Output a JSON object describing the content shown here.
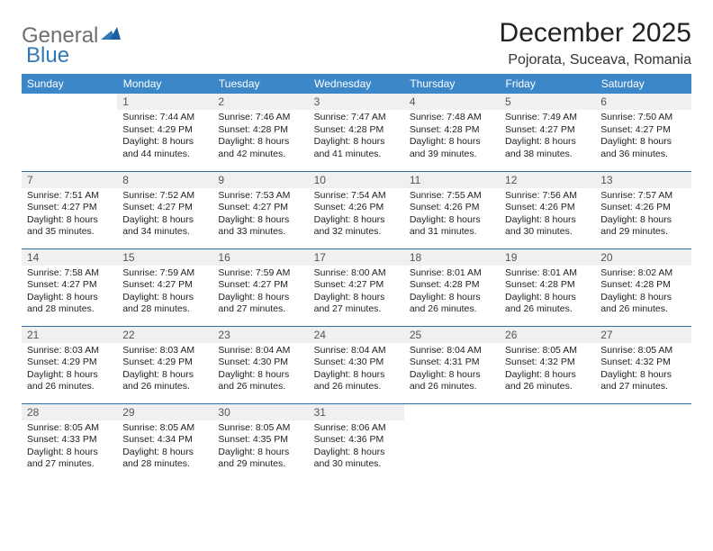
{
  "logo": {
    "text1": "General",
    "text2": "Blue",
    "color1": "#6f6f6f",
    "color2": "#2f79b9"
  },
  "title": "December 2025",
  "location": "Pojorata, Suceava, Romania",
  "header_bg": "#3c87c7",
  "header_fg": "#ffffff",
  "daynum_bg": "#eef0f1",
  "border_color": "#2f6fa8",
  "weekdays": [
    "Sunday",
    "Monday",
    "Tuesday",
    "Wednesday",
    "Thursday",
    "Friday",
    "Saturday"
  ],
  "weeks": [
    [
      {
        "n": "",
        "sr": "",
        "ss": "",
        "dl": ""
      },
      {
        "n": "1",
        "sr": "7:44 AM",
        "ss": "4:29 PM",
        "dl": "8 hours and 44 minutes."
      },
      {
        "n": "2",
        "sr": "7:46 AM",
        "ss": "4:28 PM",
        "dl": "8 hours and 42 minutes."
      },
      {
        "n": "3",
        "sr": "7:47 AM",
        "ss": "4:28 PM",
        "dl": "8 hours and 41 minutes."
      },
      {
        "n": "4",
        "sr": "7:48 AM",
        "ss": "4:28 PM",
        "dl": "8 hours and 39 minutes."
      },
      {
        "n": "5",
        "sr": "7:49 AM",
        "ss": "4:27 PM",
        "dl": "8 hours and 38 minutes."
      },
      {
        "n": "6",
        "sr": "7:50 AM",
        "ss": "4:27 PM",
        "dl": "8 hours and 36 minutes."
      }
    ],
    [
      {
        "n": "7",
        "sr": "7:51 AM",
        "ss": "4:27 PM",
        "dl": "8 hours and 35 minutes."
      },
      {
        "n": "8",
        "sr": "7:52 AM",
        "ss": "4:27 PM",
        "dl": "8 hours and 34 minutes."
      },
      {
        "n": "9",
        "sr": "7:53 AM",
        "ss": "4:27 PM",
        "dl": "8 hours and 33 minutes."
      },
      {
        "n": "10",
        "sr": "7:54 AM",
        "ss": "4:26 PM",
        "dl": "8 hours and 32 minutes."
      },
      {
        "n": "11",
        "sr": "7:55 AM",
        "ss": "4:26 PM",
        "dl": "8 hours and 31 minutes."
      },
      {
        "n": "12",
        "sr": "7:56 AM",
        "ss": "4:26 PM",
        "dl": "8 hours and 30 minutes."
      },
      {
        "n": "13",
        "sr": "7:57 AM",
        "ss": "4:26 PM",
        "dl": "8 hours and 29 minutes."
      }
    ],
    [
      {
        "n": "14",
        "sr": "7:58 AM",
        "ss": "4:27 PM",
        "dl": "8 hours and 28 minutes."
      },
      {
        "n": "15",
        "sr": "7:59 AM",
        "ss": "4:27 PM",
        "dl": "8 hours and 28 minutes."
      },
      {
        "n": "16",
        "sr": "7:59 AM",
        "ss": "4:27 PM",
        "dl": "8 hours and 27 minutes."
      },
      {
        "n": "17",
        "sr": "8:00 AM",
        "ss": "4:27 PM",
        "dl": "8 hours and 27 minutes."
      },
      {
        "n": "18",
        "sr": "8:01 AM",
        "ss": "4:28 PM",
        "dl": "8 hours and 26 minutes."
      },
      {
        "n": "19",
        "sr": "8:01 AM",
        "ss": "4:28 PM",
        "dl": "8 hours and 26 minutes."
      },
      {
        "n": "20",
        "sr": "8:02 AM",
        "ss": "4:28 PM",
        "dl": "8 hours and 26 minutes."
      }
    ],
    [
      {
        "n": "21",
        "sr": "8:03 AM",
        "ss": "4:29 PM",
        "dl": "8 hours and 26 minutes."
      },
      {
        "n": "22",
        "sr": "8:03 AM",
        "ss": "4:29 PM",
        "dl": "8 hours and 26 minutes."
      },
      {
        "n": "23",
        "sr": "8:04 AM",
        "ss": "4:30 PM",
        "dl": "8 hours and 26 minutes."
      },
      {
        "n": "24",
        "sr": "8:04 AM",
        "ss": "4:30 PM",
        "dl": "8 hours and 26 minutes."
      },
      {
        "n": "25",
        "sr": "8:04 AM",
        "ss": "4:31 PM",
        "dl": "8 hours and 26 minutes."
      },
      {
        "n": "26",
        "sr": "8:05 AM",
        "ss": "4:32 PM",
        "dl": "8 hours and 26 minutes."
      },
      {
        "n": "27",
        "sr": "8:05 AM",
        "ss": "4:32 PM",
        "dl": "8 hours and 27 minutes."
      }
    ],
    [
      {
        "n": "28",
        "sr": "8:05 AM",
        "ss": "4:33 PM",
        "dl": "8 hours and 27 minutes."
      },
      {
        "n": "29",
        "sr": "8:05 AM",
        "ss": "4:34 PM",
        "dl": "8 hours and 28 minutes."
      },
      {
        "n": "30",
        "sr": "8:05 AM",
        "ss": "4:35 PM",
        "dl": "8 hours and 29 minutes."
      },
      {
        "n": "31",
        "sr": "8:06 AM",
        "ss": "4:36 PM",
        "dl": "8 hours and 30 minutes."
      },
      {
        "n": "",
        "sr": "",
        "ss": "",
        "dl": ""
      },
      {
        "n": "",
        "sr": "",
        "ss": "",
        "dl": ""
      },
      {
        "n": "",
        "sr": "",
        "ss": "",
        "dl": ""
      }
    ]
  ]
}
